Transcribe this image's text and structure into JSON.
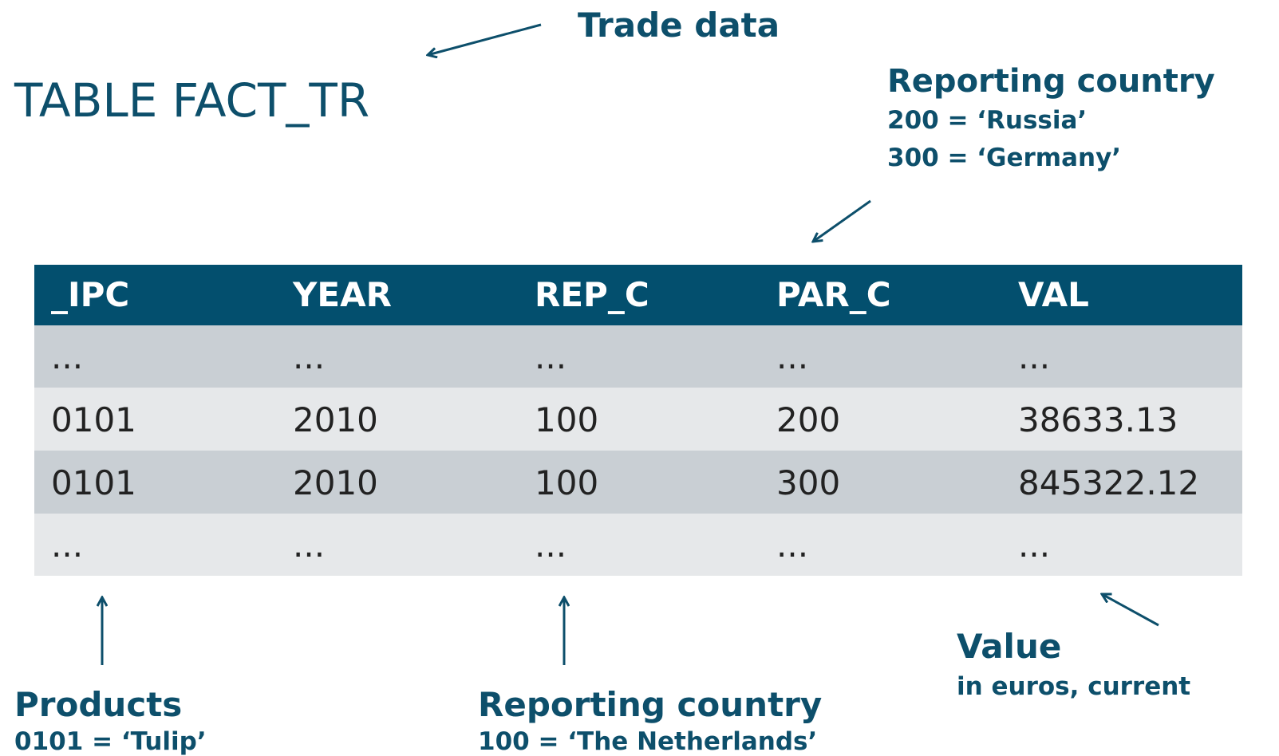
{
  "title": "TABLE FACT_TR",
  "annotations": {
    "trade_data": {
      "title": "Trade data"
    },
    "partner_country": {
      "title": "Reporting country",
      "lines": [
        "200 = ‘Russia’",
        "300 = ‘Germany’"
      ]
    },
    "products": {
      "title": "Products",
      "lines": [
        "0101 = ‘Tulip’"
      ]
    },
    "reporting_country": {
      "title": "Reporting country",
      "lines": [
        "100 = ‘The Netherlands’"
      ]
    },
    "value": {
      "title": "Value",
      "lines": [
        "in euros, current"
      ]
    }
  },
  "table": {
    "header": [
      "_IPC",
      "YEAR",
      "REP_C",
      "PAR_C",
      "VAL"
    ],
    "rows": [
      [
        "...",
        "...",
        "...",
        "...",
        "..."
      ],
      [
        "0101",
        "2010",
        "100",
        "200",
        "38633.13"
      ],
      [
        "0101",
        "2010",
        "100",
        "300",
        "845322.12"
      ],
      [
        "...",
        "...",
        "...",
        "...",
        "..."
      ]
    ]
  }
}
